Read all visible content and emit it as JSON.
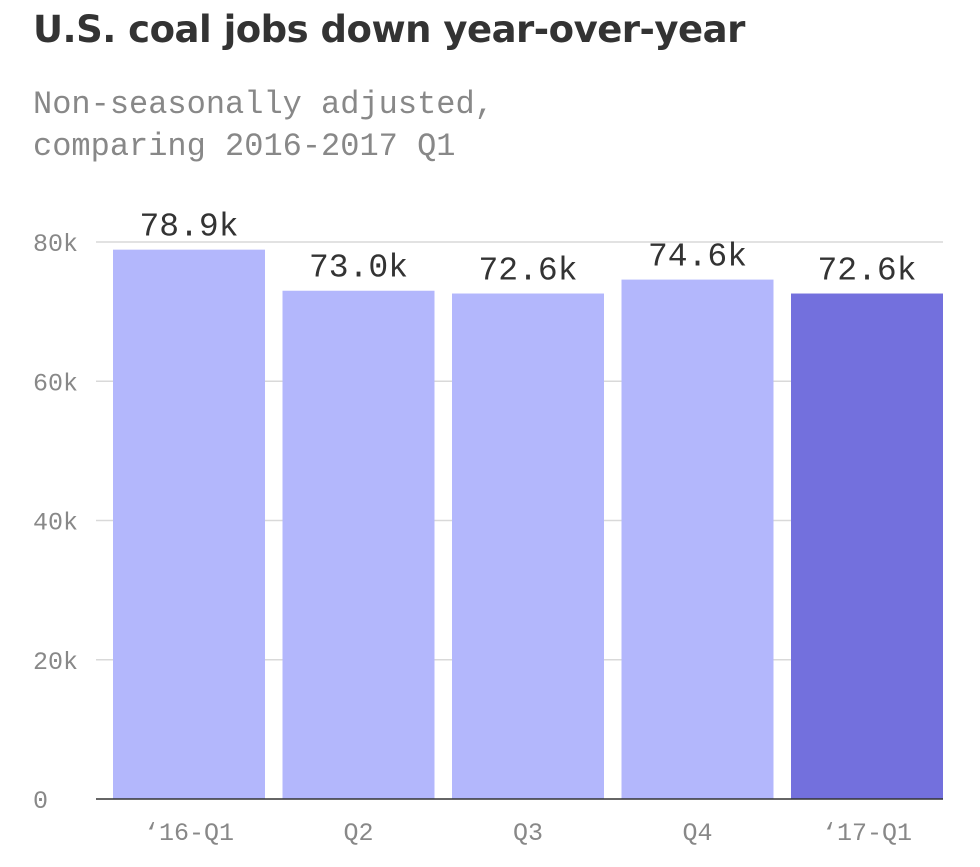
{
  "chart_data": {
    "type": "bar",
    "title": "U.S. coal jobs down year-over-year",
    "subtitle": "Non-seasonally adjusted,\ncomparing 2016-2017 Q1",
    "categories": [
      "‘16-Q1",
      "Q2",
      "Q3",
      "Q4",
      "‘17-Q1"
    ],
    "values": [
      78.9,
      73.0,
      72.6,
      74.6,
      72.6
    ],
    "value_labels": [
      "78.9k",
      "73.0k",
      "72.6k",
      "74.6k",
      "72.6k"
    ],
    "unit": "thousands of jobs",
    "ylim": [
      0,
      80
    ],
    "yticks": [
      0,
      20,
      40,
      60,
      80
    ],
    "ytick_labels": [
      "0",
      "20k",
      "40k",
      "60k",
      "80k"
    ],
    "grid": true,
    "legend": "none",
    "colors": {
      "bar": "#b3b7fc",
      "highlight_bar": "#7370dd",
      "grid": "#d9d9d9",
      "axis": "#333333"
    },
    "highlight_index": 4
  }
}
